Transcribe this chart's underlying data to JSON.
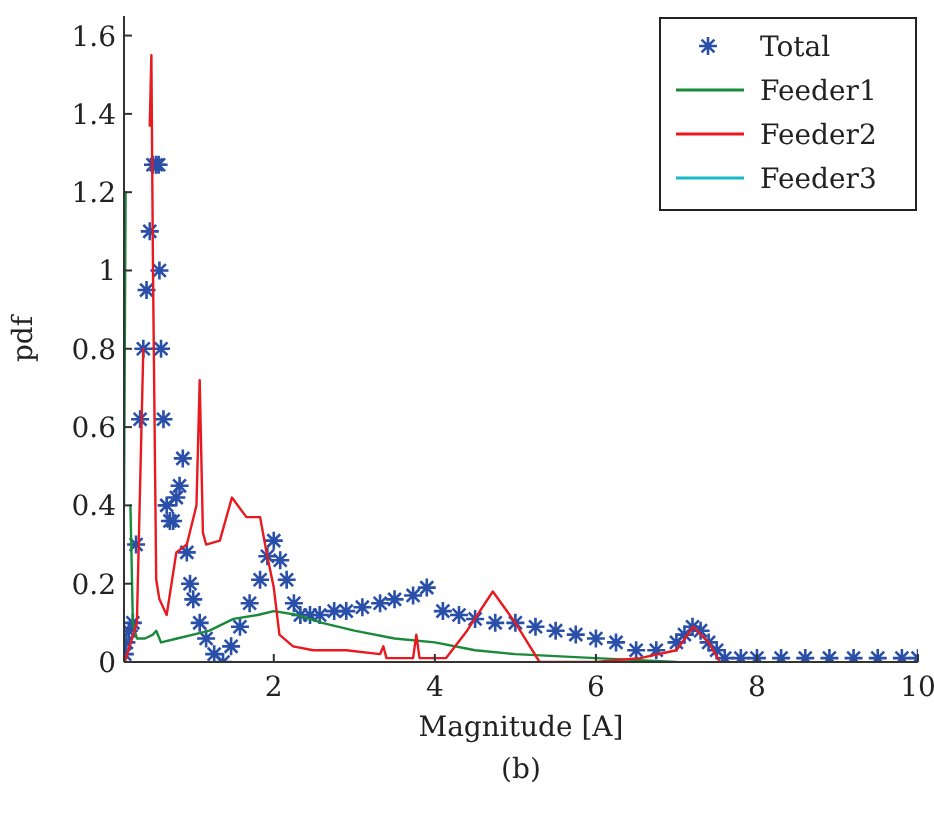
{
  "chart_data": {
    "type": "line",
    "xlabel": "Magnitude [A]",
    "ylabel": "pdf",
    "annotations": [
      "(b)"
    ],
    "xlim": [
      0.14,
      10
    ],
    "xticks": [
      2,
      4,
      6,
      8,
      10
    ],
    "ylim": [
      0,
      1.65
    ],
    "yticks": [
      0,
      0.2,
      0.4,
      0.6,
      0.8,
      1,
      1.2,
      1.4,
      1.6
    ],
    "grid": false,
    "legend": "top right",
    "series": [
      {
        "name": "Total",
        "type": "scatter",
        "marker": "cross",
        "color": "#2a4fa8",
        "x": [
          0.15,
          0.17,
          0.2,
          0.25,
          0.29,
          0.34,
          0.38,
          0.42,
          0.46,
          0.5,
          0.54,
          0.57,
          0.58,
          0.6,
          0.63,
          0.67,
          0.71,
          0.75,
          0.79,
          0.83,
          0.87,
          0.92,
          0.96,
          1.0,
          1.08,
          1.16,
          1.26,
          1.37,
          1.47,
          1.58,
          1.7,
          1.83,
          1.92,
          2.0,
          2.08,
          2.16,
          2.25,
          2.33,
          2.45,
          2.57,
          2.75,
          2.9,
          3.1,
          3.32,
          3.5,
          3.73,
          3.9,
          4.1,
          4.3,
          4.5,
          4.75,
          5.0,
          5.25,
          5.5,
          5.75,
          6.0,
          6.25,
          6.5,
          6.75,
          7.0,
          7.1,
          7.2,
          7.3,
          7.4,
          7.5,
          7.6,
          7.8,
          8.0,
          8.3,
          8.6,
          8.9,
          9.2,
          9.5,
          9.8,
          10.0
        ],
        "values": [
          0.02,
          0.05,
          0.08,
          0.1,
          0.3,
          0.62,
          0.8,
          0.95,
          1.1,
          1.27,
          1.27,
          1.27,
          1.0,
          0.8,
          0.62,
          0.4,
          0.36,
          0.36,
          0.42,
          0.45,
          0.52,
          0.28,
          0.2,
          0.16,
          0.1,
          0.06,
          0.02,
          0.0,
          0.04,
          0.09,
          0.15,
          0.21,
          0.27,
          0.31,
          0.26,
          0.21,
          0.15,
          0.12,
          0.12,
          0.12,
          0.13,
          0.13,
          0.14,
          0.15,
          0.16,
          0.17,
          0.19,
          0.13,
          0.12,
          0.11,
          0.1,
          0.1,
          0.09,
          0.08,
          0.07,
          0.06,
          0.05,
          0.03,
          0.03,
          0.05,
          0.07,
          0.09,
          0.08,
          0.05,
          0.03,
          0.01,
          0.01,
          0.01,
          0.01,
          0.01,
          0.01,
          0.01,
          0.01,
          0.01,
          0.01
        ]
      },
      {
        "name": "Feeder1",
        "color": "#1a8a3a",
        "x": [
          0.14,
          0.16,
          0.17,
          0.2,
          0.22,
          0.25,
          0.3,
          0.4,
          0.5,
          0.54,
          0.6,
          0.8,
          1.0,
          1.2,
          1.5,
          1.8,
          2.0,
          2.3,
          2.6,
          3.0,
          3.5,
          4.0,
          4.5,
          5.0,
          6.0,
          7.0
        ],
        "values": [
          0.4,
          1.2,
          null,
          null,
          0.4,
          0.1,
          0.06,
          0.06,
          0.07,
          0.08,
          0.05,
          0.06,
          0.07,
          0.08,
          0.11,
          0.12,
          0.13,
          0.12,
          0.1,
          0.08,
          0.06,
          0.05,
          0.03,
          0.02,
          0.01,
          0.0
        ]
      },
      {
        "name": "Feeder2",
        "color": "#e8191f",
        "x": [
          0.15,
          0.3,
          0.38,
          0.42,
          0.46,
          0.48,
          0.5,
          0.54,
          0.58,
          0.67,
          0.79,
          0.92,
          1.04,
          1.08,
          1.12,
          1.16,
          1.33,
          1.48,
          1.66,
          1.83,
          1.91,
          2.0,
          2.07,
          2.24,
          2.49,
          2.9,
          3.32,
          3.36,
          3.4,
          3.73,
          3.77,
          3.81,
          4.14,
          4.4,
          4.72,
          5.0,
          5.3,
          6.0,
          6.55,
          7.0,
          7.21,
          7.4,
          7.54
        ],
        "values": [
          0.0,
          0.1,
          0.8,
          null,
          1.37,
          1.55,
          1.0,
          0.21,
          0.16,
          0.12,
          0.28,
          0.3,
          0.4,
          0.72,
          0.33,
          0.3,
          0.31,
          0.42,
          0.37,
          0.37,
          0.28,
          0.19,
          0.07,
          0.04,
          0.03,
          0.03,
          0.02,
          0.04,
          0.01,
          0.01,
          0.07,
          0.01,
          0.01,
          0.08,
          0.18,
          0.1,
          0.0,
          0.0,
          0.01,
          0.03,
          0.09,
          0.05,
          0.0
        ]
      },
      {
        "name": "Feeder3",
        "color": "#1ab8c8"
      }
    ]
  }
}
